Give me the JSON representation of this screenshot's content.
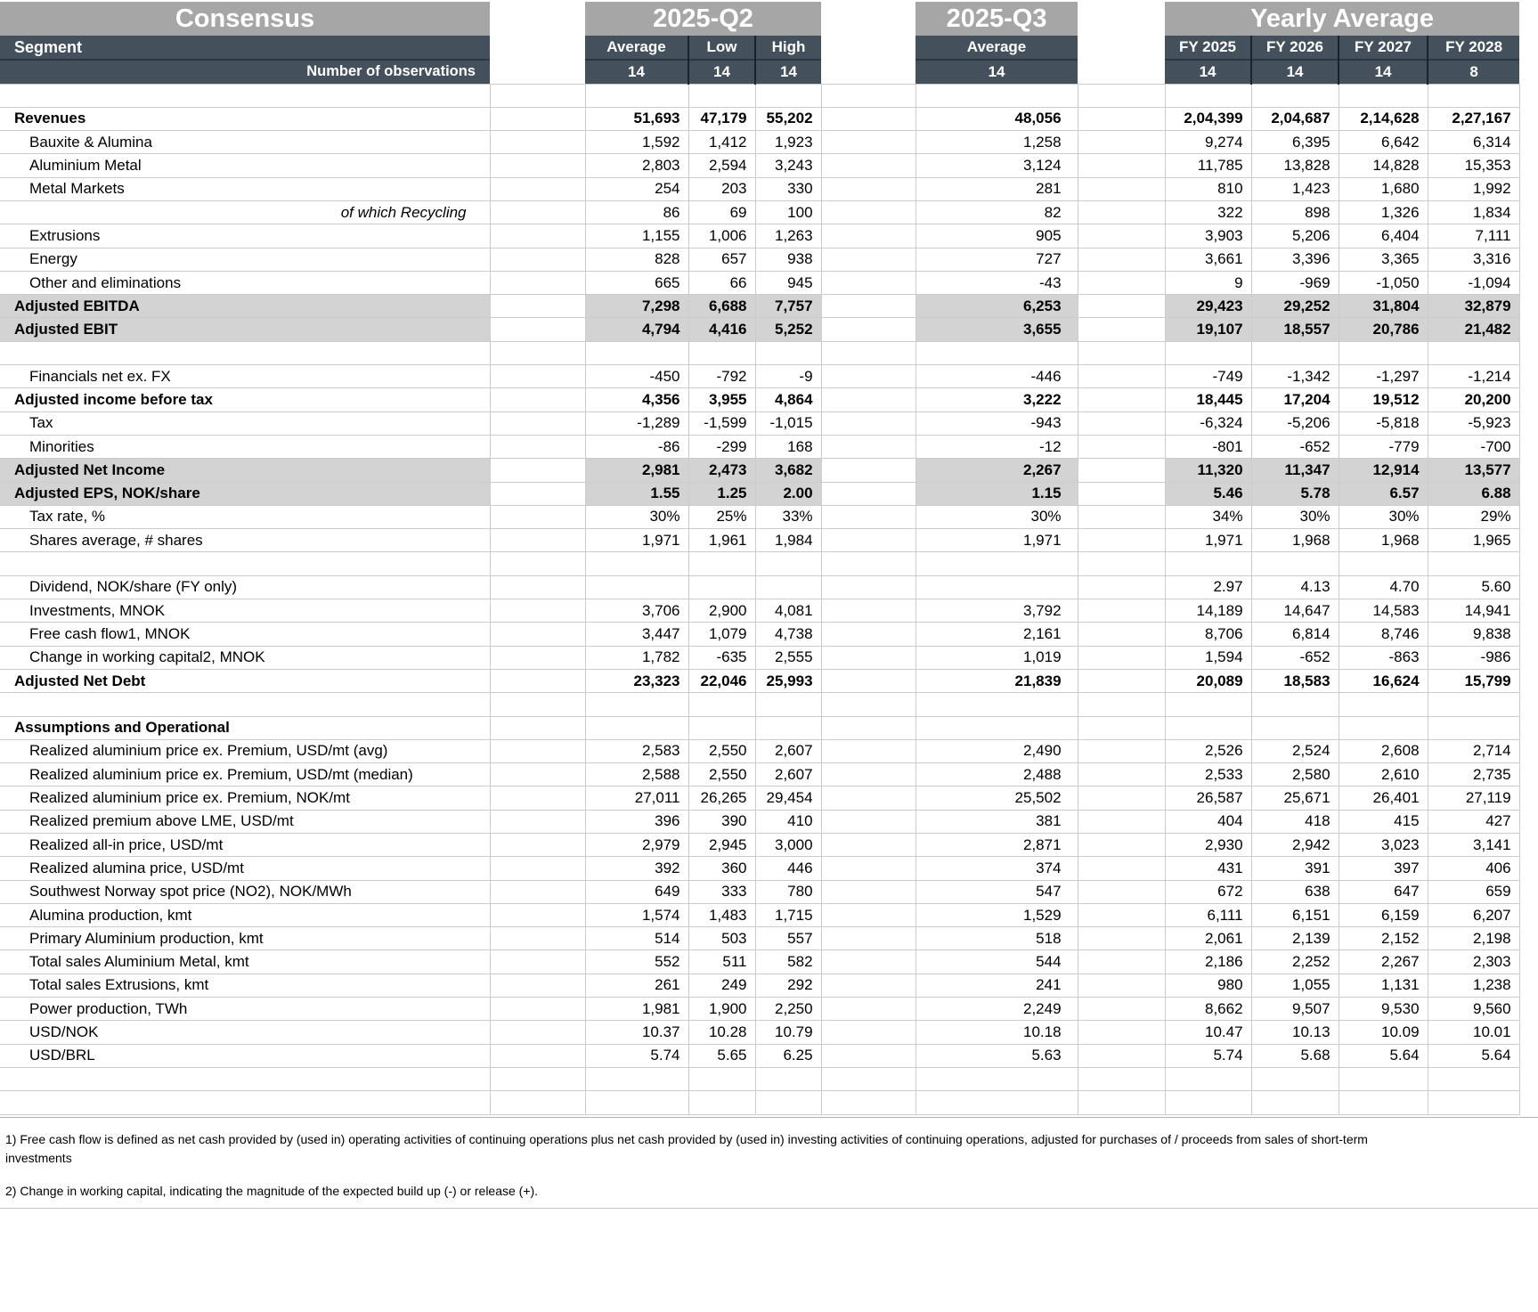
{
  "header": {
    "consensus_title": "Consensus",
    "q2_title": "2025-Q2",
    "q3_title": "2025-Q3",
    "yearly_title": "Yearly Average",
    "segment_label": "Segment",
    "observations_label": "Number of observations",
    "q2_cols": [
      "Average",
      "Low",
      "High"
    ],
    "q3_col": "Average",
    "fy_cols": [
      "FY 2025",
      "FY 2026",
      "FY 2027",
      "FY 2028"
    ],
    "observations": {
      "q2": [
        "14",
        "14",
        "14"
      ],
      "q3": "14",
      "fy": [
        "14",
        "14",
        "14",
        "8"
      ]
    }
  },
  "rows": [
    {
      "label": "",
      "style": "blank",
      "values": [
        "",
        "",
        "",
        "",
        "",
        "",
        "",
        ""
      ]
    },
    {
      "label": "Revenues",
      "style": "bold",
      "values": [
        "51,693",
        "47,179",
        "55,202",
        "48,056",
        "2,04,399",
        "2,04,687",
        "2,14,628",
        "2,27,167"
      ]
    },
    {
      "label": "Bauxite & Alumina",
      "style": "ind",
      "values": [
        "1,592",
        "1,412",
        "1,923",
        "1,258",
        "9,274",
        "6,395",
        "6,642",
        "6,314"
      ]
    },
    {
      "label": "Aluminium Metal",
      "style": "ind",
      "values": [
        "2,803",
        "2,594",
        "3,243",
        "3,124",
        "11,785",
        "13,828",
        "14,828",
        "15,353"
      ]
    },
    {
      "label": "Metal Markets",
      "style": "ind",
      "values": [
        "254",
        "203",
        "330",
        "281",
        "810",
        "1,423",
        "1,680",
        "1,992"
      ]
    },
    {
      "label": "of which Recycling",
      "style": "italic",
      "values": [
        "86",
        "69",
        "100",
        "82",
        "322",
        "898",
        "1,326",
        "1,834"
      ]
    },
    {
      "label": "Extrusions",
      "style": "ind",
      "values": [
        "1,155",
        "1,006",
        "1,263",
        "905",
        "3,903",
        "5,206",
        "6,404",
        "7,111"
      ]
    },
    {
      "label": "Energy",
      "style": "ind",
      "values": [
        "828",
        "657",
        "938",
        "727",
        "3,661",
        "3,396",
        "3,365",
        "3,316"
      ]
    },
    {
      "label": "Other and eliminations",
      "style": "ind",
      "values": [
        "665",
        "66",
        "945",
        "-43",
        "9",
        "-969",
        "-1,050",
        "-1,094"
      ]
    },
    {
      "label": "Adjusted EBITDA",
      "style": "bold-shaded",
      "values": [
        "7,298",
        "6,688",
        "7,757",
        "6,253",
        "29,423",
        "29,252",
        "31,804",
        "32,879"
      ]
    },
    {
      "label": "Adjusted EBIT",
      "style": "bold-shaded",
      "values": [
        "4,794",
        "4,416",
        "5,252",
        "3,655",
        "19,107",
        "18,557",
        "20,786",
        "21,482"
      ]
    },
    {
      "label": "",
      "style": "blank",
      "values": [
        "",
        "",
        "",
        "",
        "",
        "",
        "",
        ""
      ]
    },
    {
      "label": "Financials net ex. FX",
      "style": "ind",
      "values": [
        "-450",
        "-792",
        "-9",
        "-446",
        "-749",
        "-1,342",
        "-1,297",
        "-1,214"
      ]
    },
    {
      "label": "Adjusted income before tax",
      "style": "bold",
      "values": [
        "4,356",
        "3,955",
        "4,864",
        "3,222",
        "18,445",
        "17,204",
        "19,512",
        "20,200"
      ]
    },
    {
      "label": "Tax",
      "style": "ind",
      "values": [
        "-1,289",
        "-1,599",
        "-1,015",
        "-943",
        "-6,324",
        "-5,206",
        "-5,818",
        "-5,923"
      ]
    },
    {
      "label": "Minorities",
      "style": "ind",
      "values": [
        "-86",
        "-299",
        "168",
        "-12",
        "-801",
        "-652",
        "-779",
        "-700"
      ]
    },
    {
      "label": "Adjusted Net Income",
      "style": "bold-shaded",
      "values": [
        "2,981",
        "2,473",
        "3,682",
        "2,267",
        "11,320",
        "11,347",
        "12,914",
        "13,577"
      ]
    },
    {
      "label": "Adjusted EPS, NOK/share",
      "style": "bold-shaded",
      "values": [
        "1.55",
        "1.25",
        "2.00",
        "1.15",
        "5.46",
        "5.78",
        "6.57",
        "6.88"
      ]
    },
    {
      "label": "Tax rate, %",
      "style": "ind",
      "values": [
        "30%",
        "25%",
        "33%",
        "30%",
        "34%",
        "30%",
        "30%",
        "29%"
      ]
    },
    {
      "label": "Shares average, # shares",
      "style": "ind",
      "values": [
        "1,971",
        "1,961",
        "1,984",
        "1,971",
        "1,971",
        "1,968",
        "1,968",
        "1,965"
      ]
    },
    {
      "label": "",
      "style": "blank",
      "values": [
        "",
        "",
        "",
        "",
        "",
        "",
        "",
        ""
      ]
    },
    {
      "label": "Dividend, NOK/share (FY only)",
      "style": "ind",
      "values": [
        "",
        "",
        "",
        "",
        "2.97",
        "4.13",
        "4.70",
        "5.60"
      ]
    },
    {
      "label": "Investments, MNOK",
      "style": "ind",
      "values": [
        "3,706",
        "2,900",
        "4,081",
        "3,792",
        "14,189",
        "14,647",
        "14,583",
        "14,941"
      ]
    },
    {
      "label": "Free cash flow1, MNOK",
      "style": "ind",
      "values": [
        "3,447",
        "1,079",
        "4,738",
        "2,161",
        "8,706",
        "6,814",
        "8,746",
        "9,838"
      ]
    },
    {
      "label": "Change in working capital2, MNOK",
      "style": "ind",
      "values": [
        "1,782",
        "-635",
        "2,555",
        "1,019",
        "1,594",
        "-652",
        "-863",
        "-986"
      ]
    },
    {
      "label": "Adjusted Net Debt",
      "style": "bold",
      "values": [
        "23,323",
        "22,046",
        "25,993",
        "21,839",
        "20,089",
        "18,583",
        "16,624",
        "15,799"
      ]
    },
    {
      "label": "",
      "style": "blank",
      "values": [
        "",
        "",
        "",
        "",
        "",
        "",
        "",
        ""
      ]
    },
    {
      "label": "Assumptions and Operational",
      "style": "bold",
      "values": [
        "",
        "",
        "",
        "",
        "",
        "",
        "",
        ""
      ]
    },
    {
      "label": "Realized aluminium price ex. Premium, USD/mt (avg)",
      "style": "ind",
      "values": [
        "2,583",
        "2,550",
        "2,607",
        "2,490",
        "2,526",
        "2,524",
        "2,608",
        "2,714"
      ]
    },
    {
      "label": "Realized aluminium price ex. Premium, USD/mt (median)",
      "style": "ind",
      "values": [
        "2,588",
        "2,550",
        "2,607",
        "2,488",
        "2,533",
        "2,580",
        "2,610",
        "2,735"
      ]
    },
    {
      "label": "Realized aluminium price ex. Premium, NOK/mt",
      "style": "ind",
      "values": [
        "27,011",
        "26,265",
        "29,454",
        "25,502",
        "26,587",
        "25,671",
        "26,401",
        "27,119"
      ]
    },
    {
      "label": "Realized premium above LME, USD/mt",
      "style": "ind",
      "values": [
        "396",
        "390",
        "410",
        "381",
        "404",
        "418",
        "415",
        "427"
      ]
    },
    {
      "label": "Realized all-in price, USD/mt",
      "style": "ind",
      "values": [
        "2,979",
        "2,945",
        "3,000",
        "2,871",
        "2,930",
        "2,942",
        "3,023",
        "3,141"
      ]
    },
    {
      "label": "Realized alumina price, USD/mt",
      "style": "ind",
      "values": [
        "392",
        "360",
        "446",
        "374",
        "431",
        "391",
        "397",
        "406"
      ]
    },
    {
      "label": "Southwest Norway spot price (NO2), NOK/MWh",
      "style": "ind",
      "values": [
        "649",
        "333",
        "780",
        "547",
        "672",
        "638",
        "647",
        "659"
      ]
    },
    {
      "label": "Alumina production, kmt",
      "style": "ind",
      "values": [
        "1,574",
        "1,483",
        "1,715",
        "1,529",
        "6,111",
        "6,151",
        "6,159",
        "6,207"
      ]
    },
    {
      "label": "Primary Aluminium production, kmt",
      "style": "ind",
      "values": [
        "514",
        "503",
        "557",
        "518",
        "2,061",
        "2,139",
        "2,152",
        "2,198"
      ]
    },
    {
      "label": "Total sales Aluminium Metal, kmt",
      "style": "ind",
      "values": [
        "552",
        "511",
        "582",
        "544",
        "2,186",
        "2,252",
        "2,267",
        "2,303"
      ]
    },
    {
      "label": "Total sales Extrusions, kmt",
      "style": "ind",
      "values": [
        "261",
        "249",
        "292",
        "241",
        "980",
        "1,055",
        "1,131",
        "1,238"
      ]
    },
    {
      "label": "Power production, TWh",
      "style": "ind",
      "values": [
        "1,981",
        "1,900",
        "2,250",
        "2,249",
        "8,662",
        "9,507",
        "9,530",
        "9,560"
      ]
    },
    {
      "label": "USD/NOK",
      "style": "ind",
      "values": [
        "10.37",
        "10.28",
        "10.79",
        "10.18",
        "10.47",
        "10.13",
        "10.09",
        "10.01"
      ]
    },
    {
      "label": "USD/BRL",
      "style": "ind",
      "values": [
        "5.74",
        "5.65",
        "6.25",
        "5.63",
        "5.74",
        "5.68",
        "5.64",
        "5.64"
      ]
    },
    {
      "label": "",
      "style": "blank",
      "values": [
        "",
        "",
        "",
        "",
        "",
        "",
        "",
        ""
      ]
    },
    {
      "label": "",
      "style": "blank",
      "values": [
        "",
        "",
        "",
        "",
        "",
        "",
        "",
        ""
      ]
    }
  ],
  "footnotes": [
    "1) Free cash flow is defined as net cash provided by (used in) operating activities of continuing operations plus net cash provided by (used in) investing activities of continuing operations, adjusted for purchases of / proceeds from sales of short-term investments",
    "2) Change in working capital, indicating the magnitude of the expected build up (-) or release (+)."
  ],
  "colors": {
    "banner_gray": "#a6a6a6",
    "header_dark": "#44505b",
    "row_shaded": "#d3d3d3",
    "gridline": "#cccccc"
  }
}
